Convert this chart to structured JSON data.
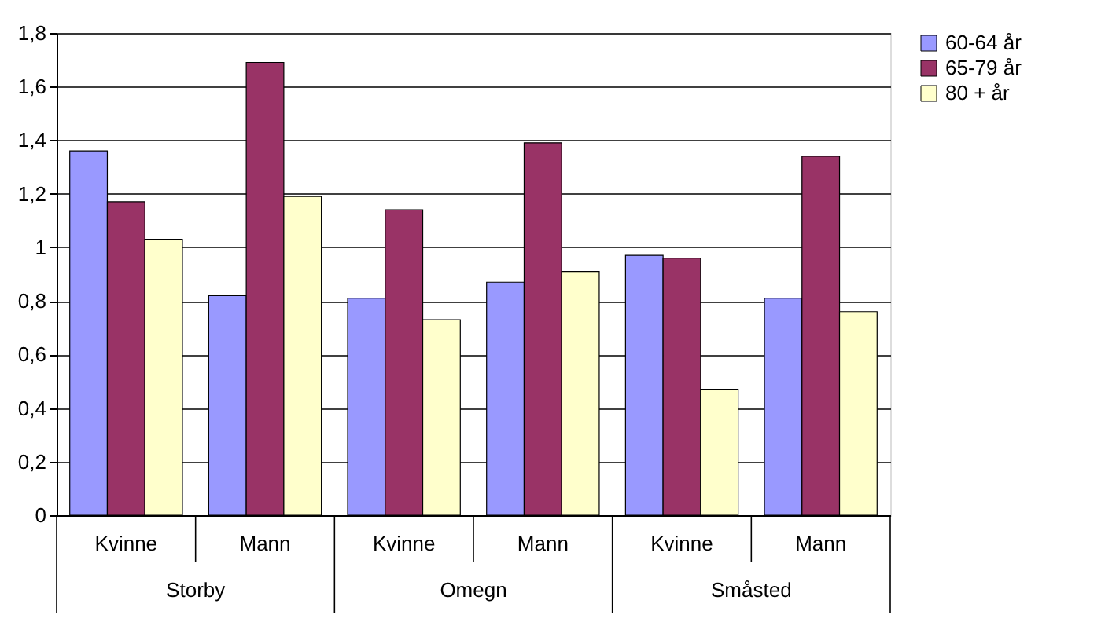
{
  "chart_data": {
    "type": "bar",
    "categories": [
      "Kvinne",
      "Mann",
      "Kvinne",
      "Mann",
      "Kvinne",
      "Mann"
    ],
    "annotations": [
      "Storby",
      "Omegn",
      "Småsted"
    ],
    "series": [
      {
        "name": "60-64 år",
        "color": "#9999ff",
        "values": [
          1.36,
          0.82,
          0.81,
          0.87,
          0.97,
          0.81
        ]
      },
      {
        "name": "65-79 år",
        "color": "#993366",
        "values": [
          1.17,
          1.69,
          1.14,
          1.39,
          0.96,
          1.34
        ]
      },
      {
        "name": "80 + år",
        "color": "#ffffcc",
        "values": [
          1.03,
          1.19,
          0.73,
          0.91,
          0.47,
          0.76
        ]
      }
    ],
    "ylim": [
      0,
      1.8
    ],
    "yticks": [
      0,
      {
        "value": 0.2,
        "label": "0,2"
      },
      {
        "value": 0.4,
        "label": "0,4"
      },
      {
        "value": 0.6,
        "label": "0,6"
      },
      {
        "value": 0.8,
        "label": "0,8"
      },
      1,
      {
        "value": 1.2,
        "label": "1,2"
      },
      {
        "value": 1.4,
        "label": "1,4"
      },
      {
        "value": 1.6,
        "label": "1,6"
      },
      {
        "value": 1.8,
        "label": "1,8"
      }
    ],
    "grid": "y",
    "legend": "right"
  }
}
